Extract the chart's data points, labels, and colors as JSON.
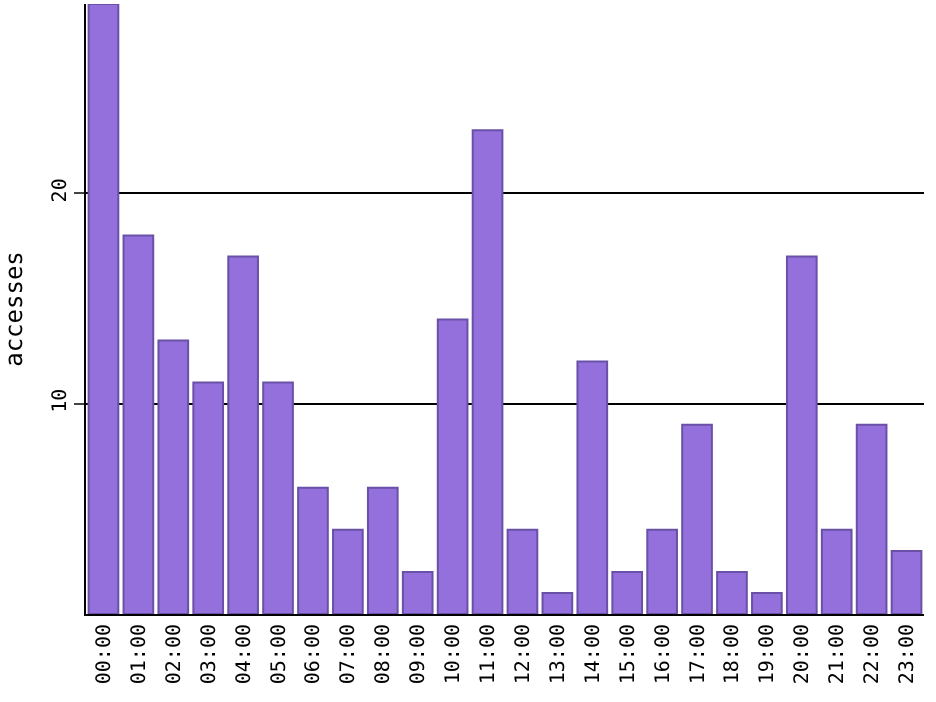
{
  "chart_data": {
    "type": "bar",
    "ylabel": "accesses",
    "categories": [
      "00:00",
      "01:00",
      "02:00",
      "03:00",
      "04:00",
      "05:00",
      "06:00",
      "07:00",
      "08:00",
      "09:00",
      "10:00",
      "11:00",
      "12:00",
      "13:00",
      "14:00",
      "15:00",
      "16:00",
      "17:00",
      "18:00",
      "19:00",
      "20:00",
      "21:00",
      "22:00",
      "23:00"
    ],
    "values": [
      29,
      18,
      13,
      11,
      17,
      11,
      6,
      4,
      6,
      2,
      14,
      23,
      4,
      1,
      12,
      2,
      4,
      9,
      2,
      1,
      17,
      4,
      9,
      3
    ],
    "color": "#9370db",
    "ylim": [
      0,
      29
    ],
    "yticks": [
      10,
      20
    ],
    "grid": "y"
  }
}
